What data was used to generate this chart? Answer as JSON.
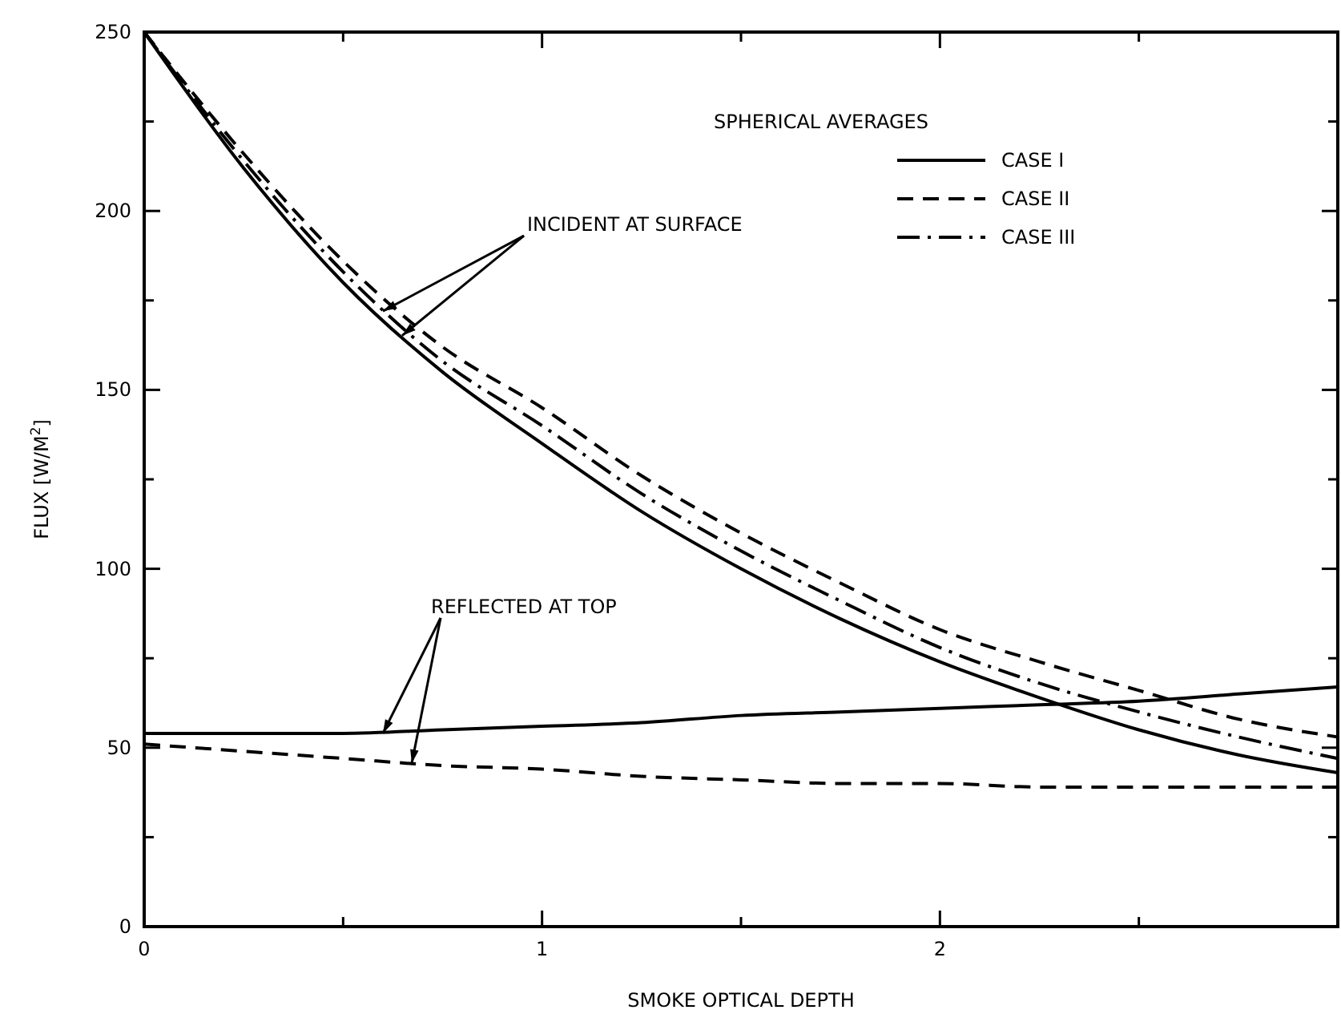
{
  "chart_data": {
    "type": "line",
    "xlabel": "SMOKE OPTICAL DEPTH",
    "ylabel": "FLUX [W/M$^{2}$]",
    "x": [
      0,
      0.25,
      0.5,
      0.75,
      1,
      1.25,
      1.5,
      1.75,
      2,
      2.25,
      2.5,
      2.75,
      3
    ],
    "series": [
      {
        "name": "CASE I",
        "color": "#000000",
        "line_style": "solid",
        "values": [
          250,
          212,
          180,
          155,
          135,
          116,
          100,
          86,
          74,
          64,
          55,
          48,
          43
        ]
      },
      {
        "name": "CASE II",
        "color": "#000000",
        "line_style": "dashed",
        "values": [
          250,
          216,
          186,
          162,
          145,
          126,
          110,
          96,
          83,
          74,
          66,
          58,
          53
        ]
      },
      {
        "name": "CASE III",
        "color": "#000000",
        "line_style": "dashdot",
        "values": [
          250,
          214,
          183,
          158,
          140,
          121,
          105,
          91,
          78,
          68,
          60,
          53,
          47
        ]
      },
      {
        "color": "#000000",
        "line_style": "solid",
        "values": [
          54,
          54,
          54,
          55,
          56,
          57,
          59,
          60,
          61,
          62,
          63,
          65,
          67
        ]
      },
      {
        "color": "#000000",
        "line_style": "dashed",
        "values": [
          51,
          49,
          47,
          45,
          44,
          42,
          41,
          40,
          40,
          39,
          39,
          39,
          39
        ]
      }
    ],
    "xlim": [
      0,
      3
    ],
    "ylim": [
      0,
      250
    ],
    "xticks": [
      0,
      {
        "value": 0.5,
        "label": null
      },
      1,
      {
        "value": 1.5,
        "label": null
      },
      2,
      {
        "value": 2.5,
        "label": null
      }
    ],
    "yticks": [
      0,
      {
        "value": 25,
        "label": null
      },
      50,
      {
        "value": 75,
        "label": null
      },
      100,
      {
        "value": 125,
        "label": null
      },
      150,
      {
        "value": 175,
        "label": null
      },
      200,
      {
        "value": 225,
        "label": null
      },
      250
    ],
    "grid": false,
    "legend": "top right",
    "marker": "none",
    "annotations": [
      "SPHERICAL AVERAGES",
      {
        "text": "INCIDENT AT SURFACE",
        "x": 0.6,
        "y": 172
      },
      {
        "text": "REFLECTED AT TOP",
        "x": 0.6,
        "y": 54
      }
    ]
  }
}
